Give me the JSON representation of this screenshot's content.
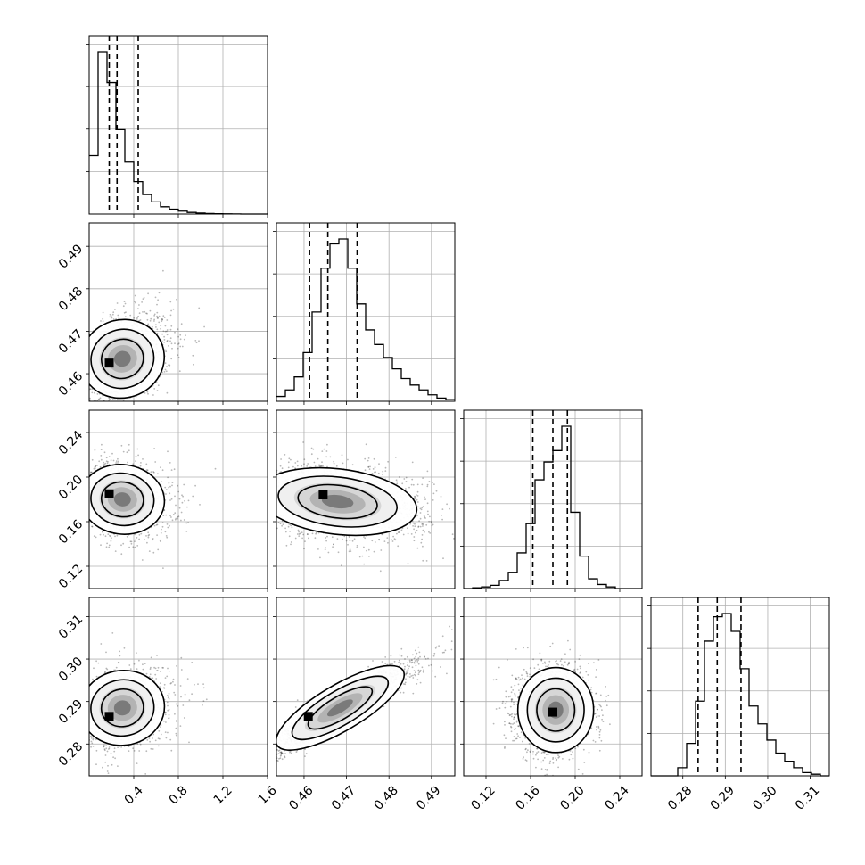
{
  "chart_data": {
    "type": "corner",
    "grid": true,
    "quantile_lines": "dashed",
    "params": [
      {
        "range": [
          0.0,
          1.6
        ],
        "ticks": [
          0.4,
          0.8,
          1.2,
          1.6
        ],
        "tick_labels": [
          "0.4",
          "0.8",
          "1.2",
          "1.6"
        ],
        "quantiles": [
          0.18,
          0.25,
          0.44
        ],
        "hist": [
          0.36,
          1.0,
          0.81,
          0.52,
          0.32,
          0.2,
          0.12,
          0.075,
          0.045,
          0.03,
          0.018,
          0.01,
          0.006,
          0.003,
          0.002,
          0.001,
          0.0005,
          0.0,
          0.0,
          0.0
        ]
      },
      {
        "range": [
          0.4535,
          0.4955
        ],
        "ticks": [
          0.46,
          0.47,
          0.48,
          0.49
        ],
        "tick_labels": [
          "0.46",
          "0.47",
          "0.48",
          "0.49"
        ],
        "quantiles": [
          0.4613,
          0.4656,
          0.4725
        ],
        "hist": [
          0.03,
          0.07,
          0.15,
          0.3,
          0.55,
          0.82,
          0.97,
          1.0,
          0.82,
          0.6,
          0.44,
          0.35,
          0.27,
          0.2,
          0.14,
          0.1,
          0.07,
          0.04,
          0.02,
          0.01
        ]
      },
      {
        "range": [
          0.1,
          0.26
        ],
        "ticks": [
          0.12,
          0.16,
          0.2,
          0.24
        ],
        "tick_labels": [
          "0.12",
          "0.16",
          "0.20",
          "0.24"
        ],
        "quantiles": [
          0.162,
          0.18,
          0.193
        ],
        "hist": [
          0.0,
          0.005,
          0.01,
          0.02,
          0.05,
          0.1,
          0.22,
          0.4,
          0.67,
          0.78,
          0.85,
          1.0,
          0.47,
          0.2,
          0.06,
          0.025,
          0.01,
          0.0,
          0.0,
          0.0
        ]
      },
      {
        "range": [
          0.2725,
          0.3145
        ],
        "ticks": [
          0.28,
          0.29,
          0.3,
          0.31
        ],
        "tick_labels": [
          "0.28",
          "0.29",
          "0.30",
          "0.31"
        ],
        "quantiles": [
          0.2836,
          0.2881,
          0.2937
        ],
        "hist": [
          0.0,
          0.0,
          0.0,
          0.05,
          0.2,
          0.46,
          0.83,
          0.98,
          1.0,
          0.89,
          0.66,
          0.43,
          0.32,
          0.22,
          0.14,
          0.09,
          0.05,
          0.02,
          0.01,
          0.0
        ]
      }
    ],
    "pairs": [
      {
        "row": 1,
        "col": 0,
        "mean": [
          0.27,
          0.4635
        ],
        "sd": [
          0.14,
          0.0055
        ],
        "rho": 0.3,
        "skew_x": 0.35,
        "peak": [
          0.18,
          0.4625
        ],
        "n_points": 1600
      },
      {
        "row": 2,
        "col": 0,
        "mean": [
          0.27,
          0.18
        ],
        "sd": [
          0.14,
          0.017
        ],
        "rho": -0.15,
        "skew_x": 0.35,
        "peak": [
          0.18,
          0.185
        ],
        "n_points": 1400
      },
      {
        "row": 2,
        "col": 1,
        "mean": [
          0.4665,
          0.178
        ],
        "sd": [
          0.0075,
          0.017
        ],
        "rho": -0.25,
        "skew_x": 0.25,
        "peak": [
          0.4645,
          0.184
        ],
        "n_points": 2000
      },
      {
        "row": 3,
        "col": 0,
        "mean": [
          0.27,
          0.2885
        ],
        "sd": [
          0.14,
          0.0048
        ],
        "rho": 0.15,
        "skew_x": 0.35,
        "peak": [
          0.18,
          0.2865
        ],
        "n_points": 1400
      },
      {
        "row": 3,
        "col": 1,
        "mean": [
          0.4672,
          0.2885
        ],
        "sd": [
          0.0075,
          0.0055
        ],
        "rho": 0.93,
        "skew_x": 0.15,
        "peak": [
          0.461,
          0.2865
        ],
        "n_points": 2200
      },
      {
        "row": 3,
        "col": 2,
        "mean": [
          0.18,
          0.288
        ],
        "sd": [
          0.017,
          0.005
        ],
        "rho": 0.0,
        "skew_x": 0.0,
        "peak": [
          0.18,
          0.2875
        ],
        "n_points": 2000
      }
    ]
  }
}
